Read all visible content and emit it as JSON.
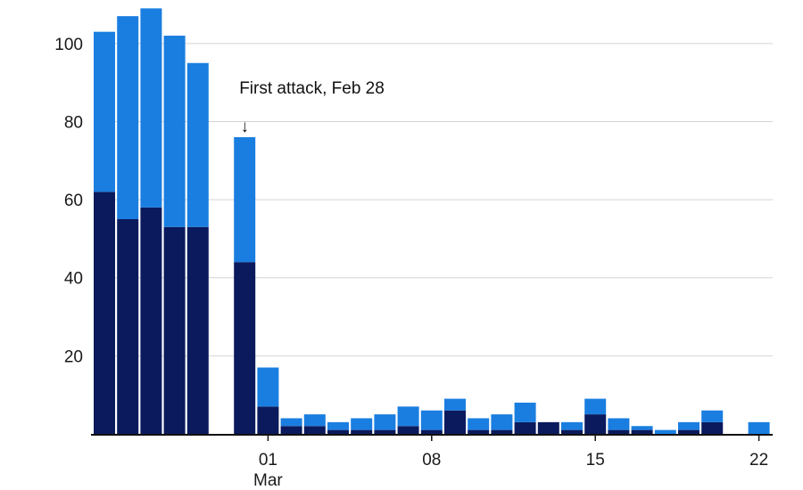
{
  "chart_data": {
    "type": "bar",
    "stacked": true,
    "title": "",
    "xlabel": "",
    "ylabel": "",
    "ylim": [
      0,
      110
    ],
    "yticks": [
      20,
      40,
      60,
      80,
      100
    ],
    "grid": true,
    "x_tick_labels": [
      {
        "index": 7,
        "label": "01",
        "sublabel": "Mar"
      },
      {
        "index": 14,
        "label": "08"
      },
      {
        "index": 21,
        "label": "15"
      },
      {
        "index": 28,
        "label": "22"
      }
    ],
    "categories": [
      "Feb 22",
      "Feb 23",
      "Feb 24",
      "Feb 25",
      "Feb 26",
      "Feb 27",
      "Feb 28",
      "Mar 01",
      "Mar 02",
      "Mar 03",
      "Mar 04",
      "Mar 05",
      "Mar 06",
      "Mar 07",
      "Mar 08",
      "Mar 09",
      "Mar 10",
      "Mar 11",
      "Mar 12",
      "Mar 13",
      "Mar 14",
      "Mar 15",
      "Mar 16",
      "Mar 17",
      "Mar 18",
      "Mar 19",
      "Mar 20",
      "Mar 21",
      "Mar 22"
    ],
    "series": [
      {
        "name": "dark",
        "color": "#0a1a5c",
        "values": [
          62,
          55,
          58,
          53,
          53,
          0,
          44,
          7,
          2,
          2,
          1,
          1,
          1,
          2,
          1,
          6,
          1,
          1,
          3,
          3,
          1,
          5,
          1,
          1,
          0,
          1,
          3,
          0,
          0
        ]
      },
      {
        "name": "light",
        "color": "#1a7ee0",
        "values": [
          41,
          52,
          51,
          49,
          42,
          0,
          32,
          10,
          2,
          3,
          2,
          3,
          4,
          5,
          5,
          3,
          3,
          4,
          5,
          0,
          2,
          4,
          3,
          1,
          1,
          2,
          3,
          0,
          3
        ]
      }
    ],
    "annotation": {
      "text": "First attack, Feb 28",
      "index": 6,
      "arrow": "↓"
    }
  }
}
